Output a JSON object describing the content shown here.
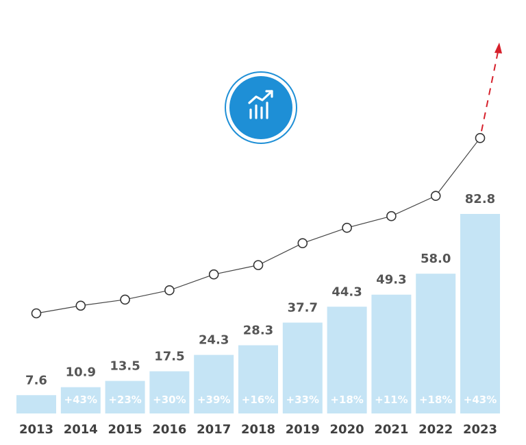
{
  "chart_data": {
    "type": "bar",
    "categories": [
      "2013",
      "2014",
      "2015",
      "2016",
      "2017",
      "2018",
      "2019",
      "2020",
      "2021",
      "2022",
      "2023"
    ],
    "values": [
      7.6,
      10.9,
      13.5,
      17.5,
      24.3,
      28.3,
      37.7,
      44.3,
      49.3,
      58.0,
      82.8
    ],
    "value_labels": [
      "7.6",
      "10.9",
      "13.5",
      "17.5",
      "24.3",
      "28.3",
      "37.7",
      "44.3",
      "49.3",
      "58.0",
      "82.8"
    ],
    "growth_labels": [
      "",
      "+43%",
      "+23%",
      "+30%",
      "+39%",
      "+16%",
      "+33%",
      "+18%",
      "+11%",
      "+18%",
      "+43%"
    ],
    "trend_line": {
      "type": "line",
      "marker": "open-circle",
      "continuation": "dashed-arrow-up"
    },
    "title": "",
    "xlabel": "",
    "ylabel": "",
    "ylim": [
      0,
      82.8
    ],
    "grid": false,
    "legend": "none",
    "colors": {
      "bar": "#c5e4f5",
      "bar_label_text": "#ffffff",
      "value_text": "#555555",
      "year_text": "#404040",
      "line": "#444444",
      "marker_stroke": "#333333",
      "arrow": "#d6202b",
      "icon_fill": "#1e8fd6",
      "icon_ring": "#1e8fd6"
    },
    "icon": "trending-up-chart-icon"
  }
}
